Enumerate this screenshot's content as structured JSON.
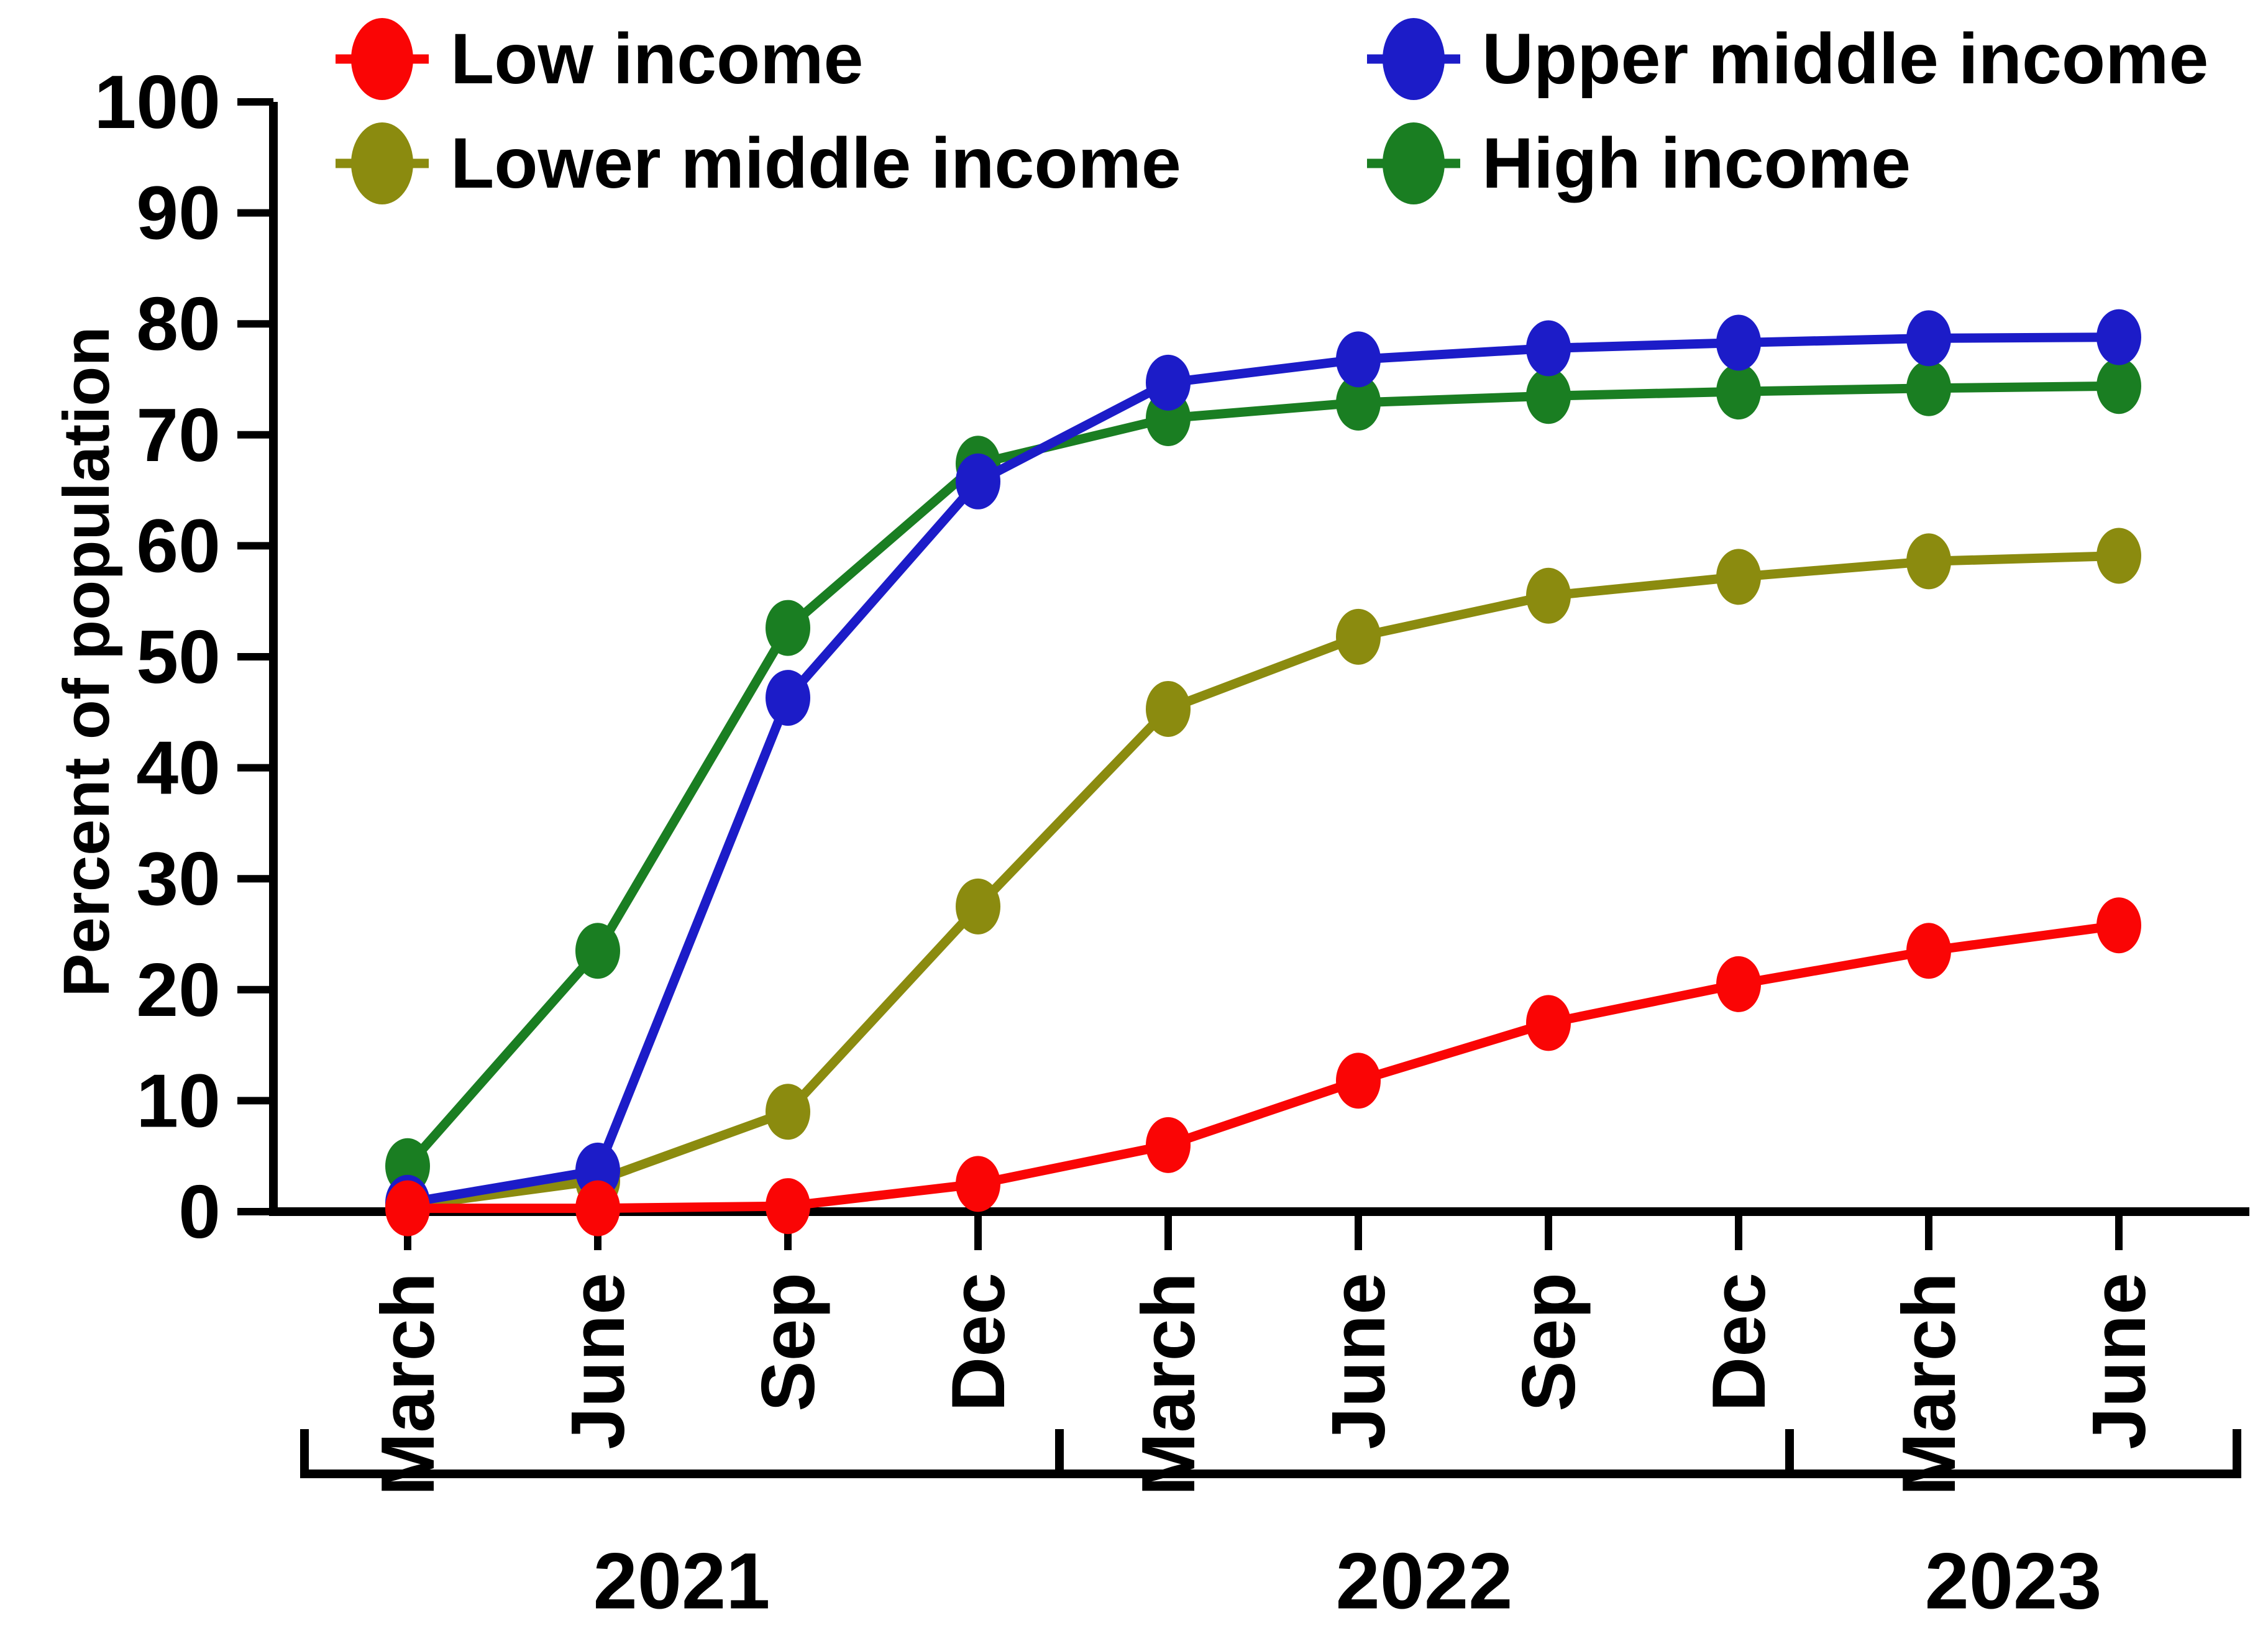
{
  "y_axis": {
    "label": "Percent of population",
    "min": 0,
    "max": 100,
    "step": 10,
    "tick_labels": [
      "0",
      "10",
      "20",
      "30",
      "40",
      "50",
      "60",
      "70",
      "80",
      "90",
      "100"
    ]
  },
  "x_axis": {
    "month_tick_labels": [
      "March",
      "June",
      "Sep",
      "Dec",
      "March",
      "June",
      "Sep",
      "Dec",
      "March",
      "June"
    ]
  },
  "year_groups": [
    {
      "label": "2021"
    },
    {
      "label": "2022"
    },
    {
      "label": "2023"
    }
  ],
  "legend": {
    "items": [
      {
        "label": "Low income",
        "color": "#fa0505"
      },
      {
        "label": "Lower middle income",
        "color": "#8b8b0f"
      },
      {
        "label": "Upper middle income",
        "color": "#1c1cc8"
      },
      {
        "label": "High income",
        "color": "#1a7e22"
      }
    ]
  },
  "chart_data": {
    "type": "line",
    "title": "",
    "xlabel": "",
    "ylabel": "Percent of population",
    "ylim": [
      0,
      100
    ],
    "grid": false,
    "legend_position": "top",
    "categories": [
      "March 2021",
      "June 2021",
      "Sep 2021",
      "Dec 2021",
      "March 2022",
      "June 2022",
      "Sep 2022",
      "Dec 2022",
      "March 2023",
      "June 2023"
    ],
    "series": [
      {
        "name": "High income",
        "color": "#1a7e22",
        "values": [
          4.1,
          23.5,
          52.6,
          67.4,
          71.5,
          72.9,
          73.5,
          73.9,
          74.2,
          74.4
        ]
      },
      {
        "name": "Lower middle income",
        "color": "#8b8b0f",
        "values": [
          0.5,
          2.8,
          9.0,
          27.5,
          45.3,
          51.8,
          55.5,
          57.2,
          58.6,
          59.1
        ]
      },
      {
        "name": "Upper middle income",
        "color": "#1c1cc8",
        "values": [
          0.8,
          3.7,
          46.3,
          65.8,
          74.7,
          76.8,
          77.8,
          78.3,
          78.7,
          78.8
        ]
      },
      {
        "name": "Low income",
        "color": "#fa0505",
        "values": [
          0.3,
          0.3,
          0.5,
          2.5,
          6.0,
          11.8,
          17.0,
          20.5,
          23.5,
          25.8
        ]
      }
    ]
  }
}
